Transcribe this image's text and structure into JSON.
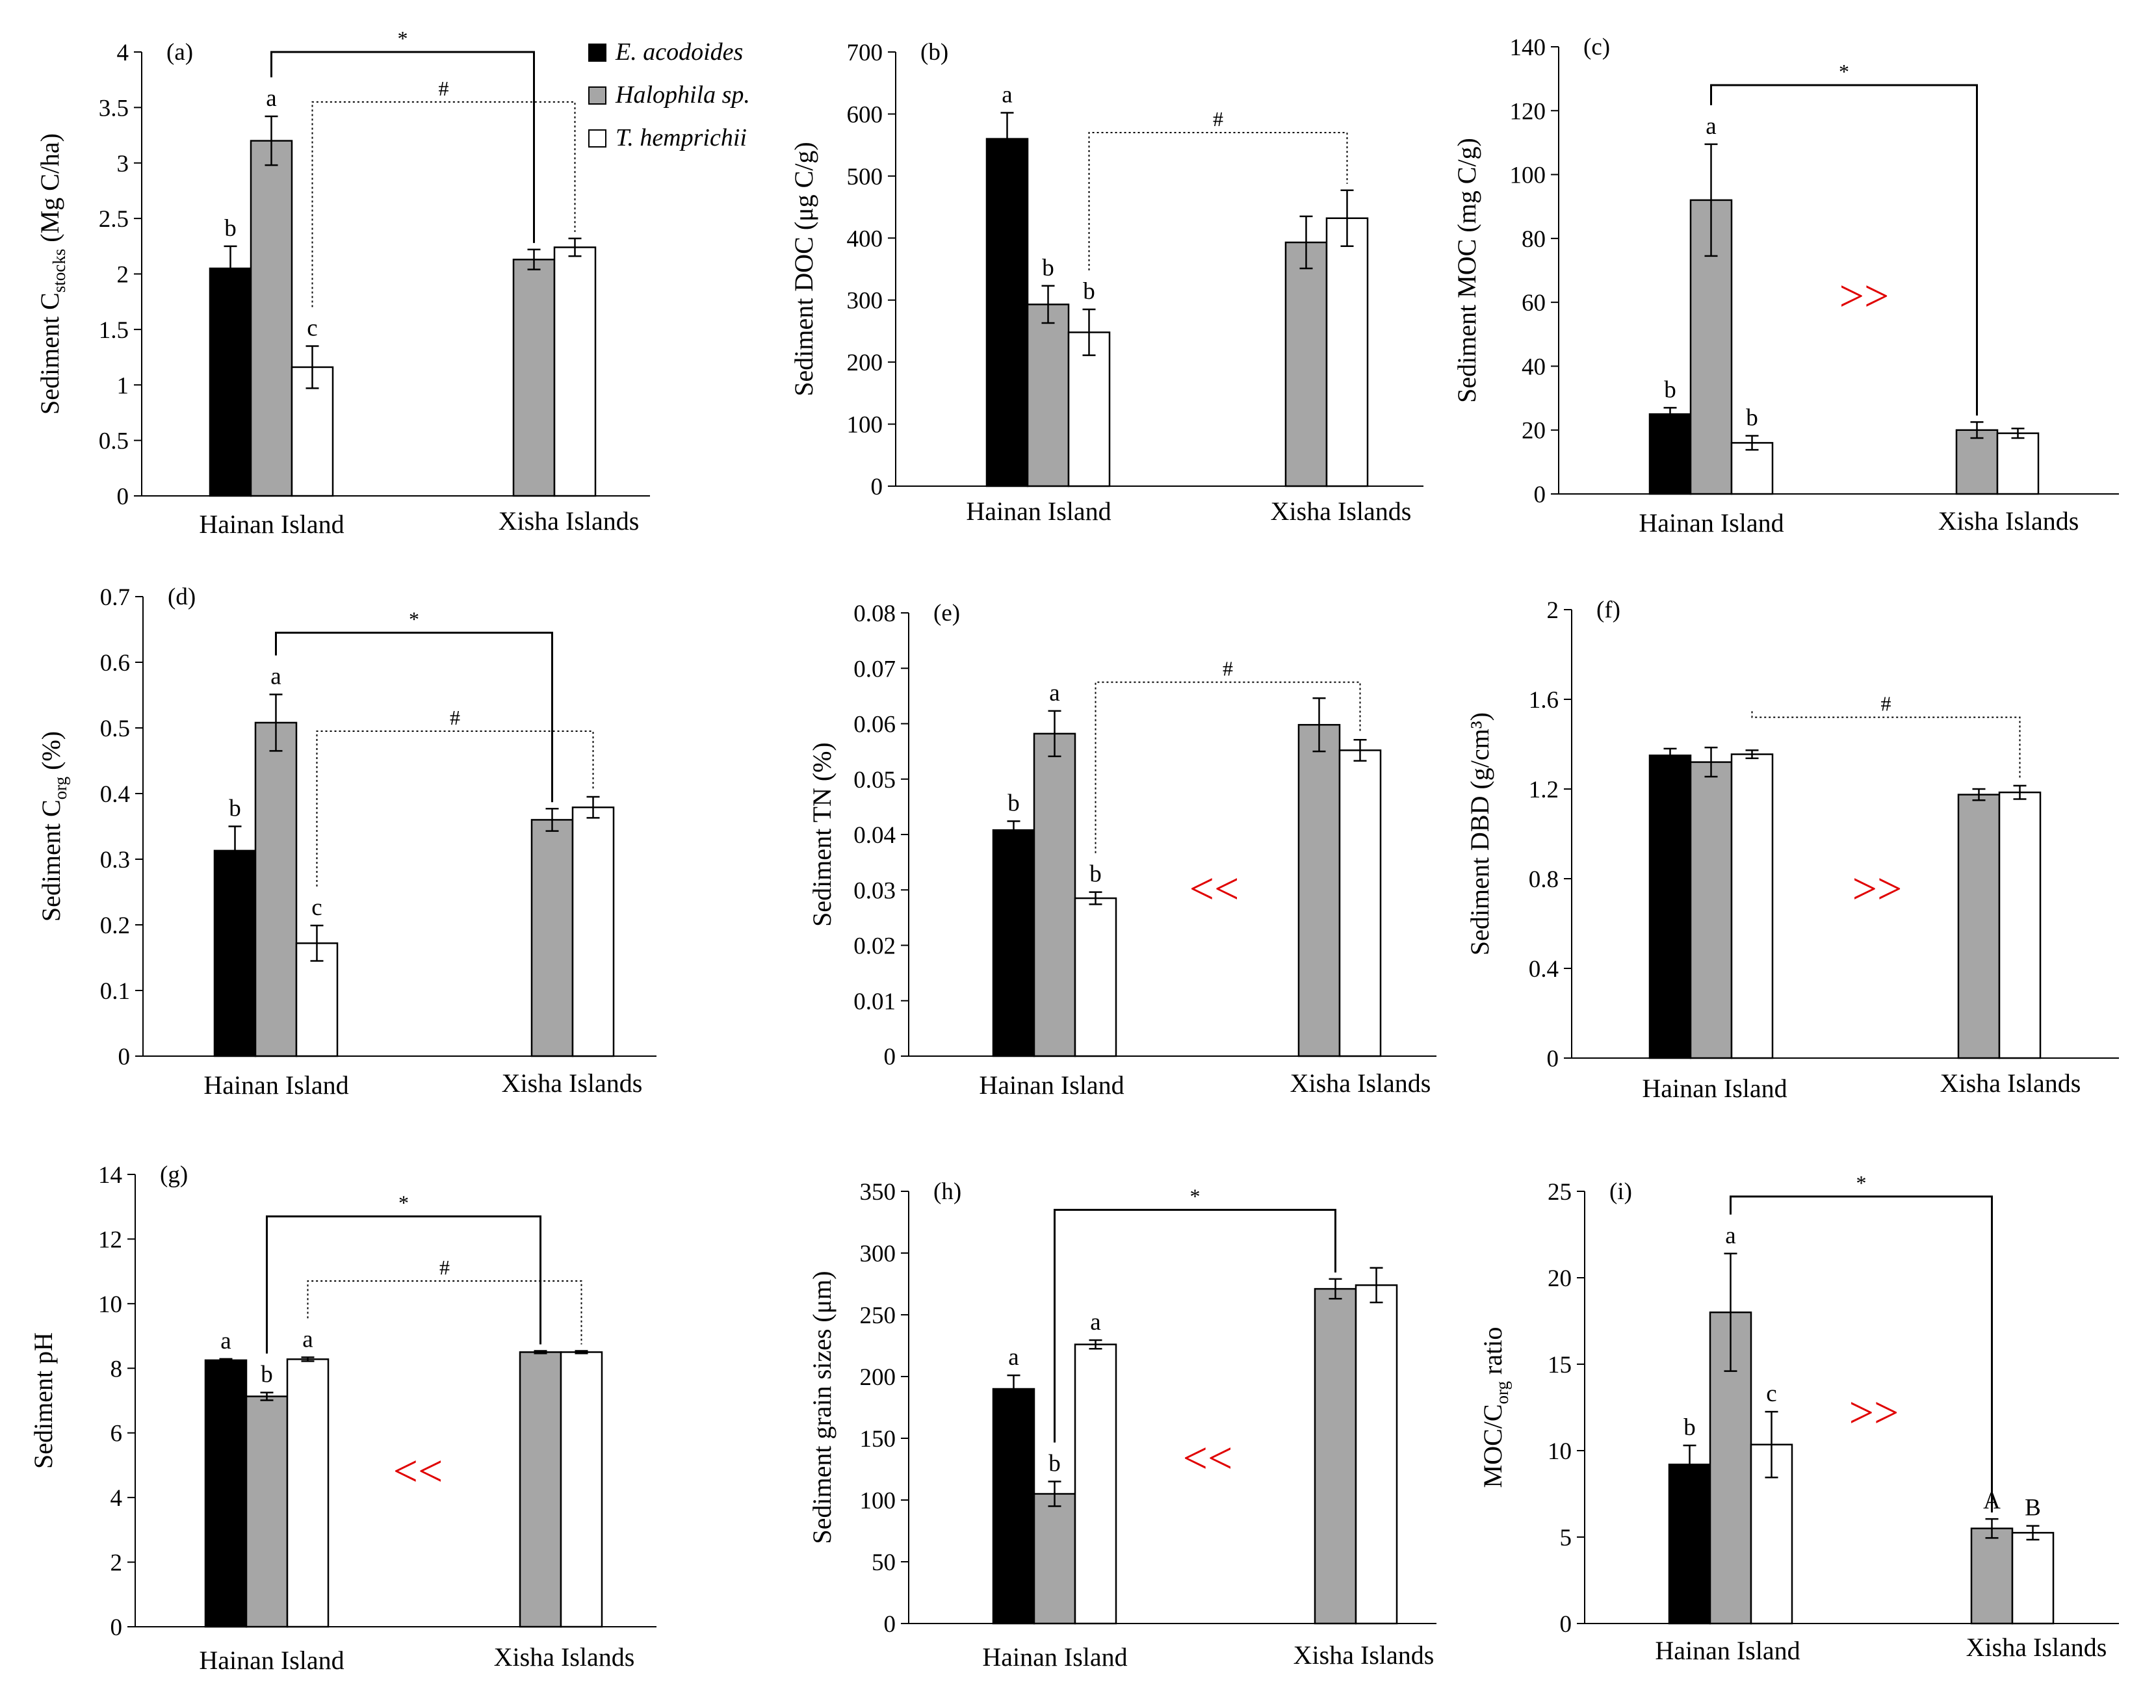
{
  "legend": [
    {
      "label": "E. acodoides",
      "color": "#000000"
    },
    {
      "label": "Halophila sp.",
      "color": "#a6a6a6"
    },
    {
      "label": "T. hemprichii",
      "color": "#ffffff"
    }
  ],
  "styles": {
    "bar_stroke": "#000000",
    "arrow_color": "#e00000",
    "bar_colors": [
      "#000000",
      "#a6a6a6",
      "#ffffff"
    ]
  },
  "chart_data": [
    {
      "type": "bar",
      "panel": "(a)",
      "ylabel": "Sediment C",
      "ylabel_sub": "stocks",
      "ylabel_suffix": " (Mg C/ha)",
      "ylim": [
        0,
        4
      ],
      "yticks": [
        0,
        0.5,
        1,
        1.5,
        2,
        2.5,
        3,
        3.5,
        4
      ],
      "categories": [
        "Hainan Island",
        "Xisha Islands"
      ],
      "series": [
        {
          "name": "E. acodoides",
          "values": [
            2.05,
            null
          ],
          "errors": [
            0.2,
            null
          ],
          "letters": [
            "b",
            ""
          ]
        },
        {
          "name": "Halophila sp.",
          "values": [
            3.2,
            2.13
          ],
          "errors": [
            0.22,
            0.09
          ],
          "letters": [
            "a",
            ""
          ]
        },
        {
          "name": "T. hemprichii",
          "values": [
            1.16,
            2.24
          ],
          "errors": [
            0.19,
            0.08
          ],
          "letters": [
            "c",
            ""
          ]
        }
      ],
      "brackets": [
        {
          "symbol": "*",
          "style": "solid",
          "from": [
            0,
            1
          ],
          "to": [
            1,
            1
          ],
          "level": 4.0
        },
        {
          "symbol": "#",
          "style": "dotted",
          "from": [
            0,
            2
          ],
          "to": [
            1,
            2
          ],
          "level": 3.55
        }
      ],
      "arrow": ""
    },
    {
      "type": "bar",
      "panel": "(b)",
      "ylabel": "Sediment DOC (μg C/g)",
      "ylabel_sub": "",
      "ylabel_suffix": "",
      "ylim": [
        0,
        700
      ],
      "yticks": [
        0,
        100,
        200,
        300,
        400,
        500,
        600,
        700
      ],
      "categories": [
        "Hainan Island",
        "Xisha Islands"
      ],
      "series": [
        {
          "name": "E. acodoides",
          "values": [
            560,
            null
          ],
          "errors": [
            42,
            null
          ],
          "letters": [
            "a",
            ""
          ]
        },
        {
          "name": "Halophila sp.",
          "values": [
            293,
            393
          ],
          "errors": [
            30,
            42
          ],
          "letters": [
            "b",
            ""
          ]
        },
        {
          "name": "T. hemprichii",
          "values": [
            248,
            432
          ],
          "errors": [
            37,
            45
          ],
          "letters": [
            "b",
            ""
          ]
        }
      ],
      "brackets": [
        {
          "symbol": "#",
          "style": "dotted",
          "from": [
            0,
            2
          ],
          "to": [
            1,
            2
          ],
          "level": 570
        }
      ],
      "arrow": ""
    },
    {
      "type": "bar",
      "panel": "(c)",
      "ylabel": "Sediment MOC (mg C/g)",
      "ylabel_sub": "",
      "ylabel_suffix": "",
      "ylim": [
        0,
        140
      ],
      "yticks": [
        0,
        20,
        40,
        60,
        80,
        100,
        120,
        140
      ],
      "categories": [
        "Hainan Island",
        "Xisha Islands"
      ],
      "series": [
        {
          "name": "E. acodoides",
          "values": [
            25,
            null
          ],
          "errors": [
            2,
            null
          ],
          "letters": [
            "b",
            ""
          ]
        },
        {
          "name": "Halophila sp.",
          "values": [
            92,
            20
          ],
          "errors": [
            17.5,
            2.5
          ],
          "letters": [
            "a",
            ""
          ]
        },
        {
          "name": "T. hemprichii",
          "values": [
            16,
            19
          ],
          "errors": [
            2.2,
            1.5
          ],
          "letters": [
            "b",
            ""
          ]
        }
      ],
      "brackets": [
        {
          "symbol": "*",
          "style": "solid",
          "from": [
            0,
            1
          ],
          "to": [
            1,
            1
          ],
          "level": 128
        }
      ],
      "arrow": ">>"
    },
    {
      "type": "bar",
      "panel": "(d)",
      "ylabel": "Sediment C",
      "ylabel_sub": "org",
      "ylabel_suffix": " (%)",
      "ylim": [
        0,
        0.7
      ],
      "yticks": [
        0,
        0.1,
        0.2,
        0.3,
        0.4,
        0.5,
        0.6,
        0.7
      ],
      "categories": [
        "Hainan Island",
        "Xisha Islands"
      ],
      "series": [
        {
          "name": "E. acodoides",
          "values": [
            0.313,
            null
          ],
          "errors": [
            0.037,
            null
          ],
          "letters": [
            "b",
            ""
          ]
        },
        {
          "name": "Halophila sp.",
          "values": [
            0.508,
            0.36
          ],
          "errors": [
            0.043,
            0.017
          ],
          "letters": [
            "a",
            ""
          ]
        },
        {
          "name": "T. hemprichii",
          "values": [
            0.172,
            0.379
          ],
          "errors": [
            0.027,
            0.016
          ],
          "letters": [
            "c",
            ""
          ]
        }
      ],
      "brackets": [
        {
          "symbol": "*",
          "style": "solid",
          "from": [
            0,
            1
          ],
          "to": [
            1,
            1
          ],
          "level": 0.645
        },
        {
          "symbol": "#",
          "style": "dotted",
          "from": [
            0,
            2
          ],
          "to": [
            1,
            2
          ],
          "level": 0.495
        }
      ],
      "arrow": ""
    },
    {
      "type": "bar",
      "panel": "(e)",
      "ylabel": "Sediment TN (%)",
      "ylabel_sub": "",
      "ylabel_suffix": "",
      "ylim": [
        0,
        0.08
      ],
      "yticks": [
        0,
        0.01,
        0.02,
        0.03,
        0.04,
        0.05,
        0.06,
        0.07,
        0.08
      ],
      "categories": [
        "Hainan Island",
        "Xisha Islands"
      ],
      "series": [
        {
          "name": "E. acodoides",
          "values": [
            0.0408,
            null
          ],
          "errors": [
            0.0016,
            null
          ],
          "letters": [
            "b",
            ""
          ]
        },
        {
          "name": "Halophila sp.",
          "values": [
            0.0582,
            0.0598
          ],
          "errors": [
            0.0041,
            0.0048
          ],
          "letters": [
            "a",
            ""
          ]
        },
        {
          "name": "T. hemprichii",
          "values": [
            0.0285,
            0.0552
          ],
          "errors": [
            0.0011,
            0.0019
          ],
          "letters": [
            "b",
            ""
          ]
        }
      ],
      "brackets": [
        {
          "symbol": "#",
          "style": "dotted",
          "from": [
            0,
            2
          ],
          "to": [
            1,
            2
          ],
          "level": 0.0675
        }
      ],
      "arrow": "<<"
    },
    {
      "type": "bar",
      "panel": "(f)",
      "ylabel": "Sediment DBD (g/cm³)",
      "ylabel_sub": "",
      "ylabel_suffix": "",
      "ylim": [
        0,
        2
      ],
      "yticks": [
        0,
        0.4,
        0.8,
        1.2,
        1.6,
        2
      ],
      "categories": [
        "Hainan Island",
        "Xisha Islands"
      ],
      "series": [
        {
          "name": "E. acodoides",
          "values": [
            1.35,
            null
          ],
          "errors": [
            0.03,
            null
          ],
          "letters": [
            "",
            ""
          ]
        },
        {
          "name": "Halophila sp.",
          "values": [
            1.32,
            1.175
          ],
          "errors": [
            0.065,
            0.025
          ],
          "letters": [
            "",
            ""
          ]
        },
        {
          "name": "T. hemprichii",
          "values": [
            1.355,
            1.185
          ],
          "errors": [
            0.018,
            0.03
          ],
          "letters": [
            "",
            ""
          ]
        }
      ],
      "brackets": [
        {
          "symbol": "#",
          "style": "dotted",
          "from": [
            0,
            2
          ],
          "to": [
            1,
            2
          ],
          "level": 1.52
        }
      ],
      "arrow": ">>"
    },
    {
      "type": "bar",
      "panel": "(g)",
      "ylabel": "Sediment pH",
      "ylabel_sub": "",
      "ylabel_suffix": "",
      "ylim": [
        0,
        14
      ],
      "yticks": [
        0,
        2,
        4,
        6,
        8,
        10,
        12,
        14
      ],
      "categories": [
        "Hainan Island",
        "Xisha Islands"
      ],
      "series": [
        {
          "name": "E. acodoides",
          "values": [
            8.25,
            null
          ],
          "errors": [
            0.04,
            null
          ],
          "letters": [
            "a",
            ""
          ]
        },
        {
          "name": "Halophila sp.",
          "values": [
            7.13,
            8.5
          ],
          "errors": [
            0.12,
            0.04
          ],
          "letters": [
            "b",
            ""
          ]
        },
        {
          "name": "T. hemprichii",
          "values": [
            8.28,
            8.5
          ],
          "errors": [
            0.06,
            0.04
          ],
          "letters": [
            "a",
            ""
          ]
        }
      ],
      "brackets": [
        {
          "symbol": "*",
          "style": "solid",
          "from": [
            0,
            1
          ],
          "to": [
            1,
            1
          ],
          "level": 12.7
        },
        {
          "symbol": "#",
          "style": "dotted",
          "from": [
            0,
            2
          ],
          "to": [
            1,
            2
          ],
          "level": 10.7
        }
      ],
      "arrow": "<<"
    },
    {
      "type": "bar",
      "panel": "(h)",
      "ylabel": "Sediment grain sizes (μm)",
      "ylabel_sub": "",
      "ylabel_suffix": "",
      "ylim": [
        0,
        350
      ],
      "yticks": [
        0,
        50,
        100,
        150,
        200,
        250,
        300,
        350
      ],
      "categories": [
        "Hainan Island",
        "Xisha Islands"
      ],
      "series": [
        {
          "name": "E. acodoides",
          "values": [
            190,
            null
          ],
          "errors": [
            11,
            null
          ],
          "letters": [
            "a",
            ""
          ]
        },
        {
          "name": "Halophila sp.",
          "values": [
            105,
            271
          ],
          "errors": [
            10,
            8
          ],
          "letters": [
            "b",
            ""
          ]
        },
        {
          "name": "T. hemprichii",
          "values": [
            226,
            274
          ],
          "errors": [
            3.5,
            14
          ],
          "letters": [
            "a",
            ""
          ]
        }
      ],
      "brackets": [
        {
          "symbol": "*",
          "style": "solid",
          "from": [
            0,
            1
          ],
          "to": [
            1,
            1
          ],
          "level": 335
        }
      ],
      "arrow": "<<"
    },
    {
      "type": "bar",
      "panel": "(i)",
      "ylabel": "MOC/C",
      "ylabel_sub": "org",
      "ylabel_suffix": " ratio",
      "ylim": [
        0,
        25
      ],
      "yticks": [
        0,
        5,
        10,
        15,
        20,
        25
      ],
      "categories": [
        "Hainan Island",
        "Xisha Islands"
      ],
      "series": [
        {
          "name": "E. acodoides",
          "values": [
            9.2,
            null
          ],
          "errors": [
            1.1,
            null
          ],
          "letters": [
            "b",
            ""
          ]
        },
        {
          "name": "Halophila sp.",
          "values": [
            18.0,
            5.5
          ],
          "errors": [
            3.4,
            0.55
          ],
          "letters": [
            "a",
            "A"
          ]
        },
        {
          "name": "T. hemprichii",
          "values": [
            10.35,
            5.25
          ],
          "errors": [
            1.9,
            0.4
          ],
          "letters": [
            "c",
            "B"
          ]
        }
      ],
      "brackets": [
        {
          "symbol": "*",
          "style": "solid",
          "from": [
            0,
            1
          ],
          "to": [
            1,
            1
          ],
          "level": 24.7
        }
      ],
      "arrow": ">>"
    }
  ]
}
